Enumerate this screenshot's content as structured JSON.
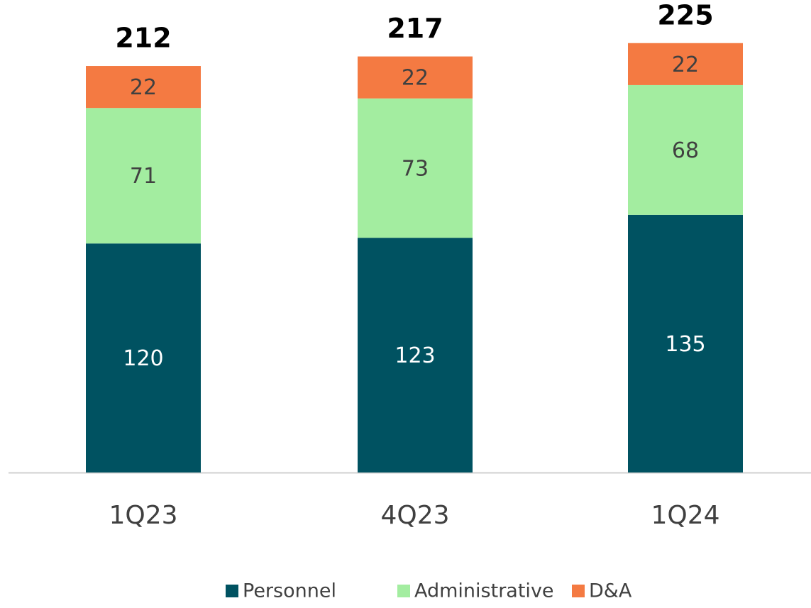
{
  "chart_data": {
    "type": "stacked_bar",
    "categories": [
      "1Q23",
      "4Q23",
      "1Q24"
    ],
    "series": [
      {
        "name": "Personnel",
        "color": "#005261",
        "values": [
          120,
          123,
          135
        ]
      },
      {
        "name": "Administrative",
        "color": "#a3eda0",
        "values": [
          71,
          73,
          68
        ]
      },
      {
        "name": "D&A",
        "color": "#f47a42",
        "values": [
          22,
          22,
          22
        ]
      }
    ],
    "totals": [
      212,
      217,
      225
    ]
  }
}
